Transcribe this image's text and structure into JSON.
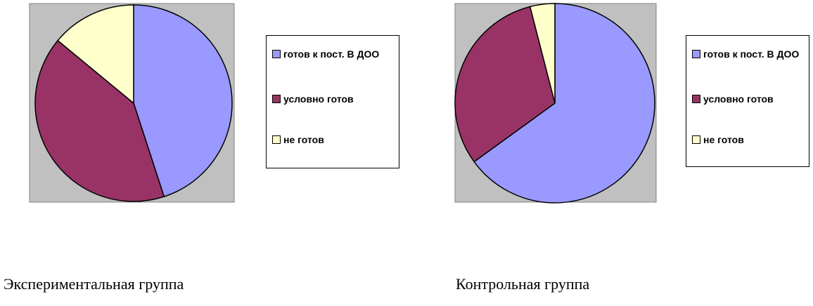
{
  "chart_data": [
    {
      "type": "pie",
      "title": "Экспериментальная группа",
      "categories": [
        "готов к пост. В ДОО",
        "условно готов",
        "не готов"
      ],
      "values": [
        45,
        41,
        14
      ],
      "colors": [
        "#9999ff",
        "#993366",
        "#ffffcc"
      ]
    },
    {
      "type": "pie",
      "title": "Контрольная группа",
      "categories": [
        "готов к пост. В ДОО",
        "условно готов",
        "не готов"
      ],
      "values": [
        65,
        31,
        4
      ],
      "colors": [
        "#9999ff",
        "#993366",
        "#ffffcc"
      ]
    }
  ]
}
